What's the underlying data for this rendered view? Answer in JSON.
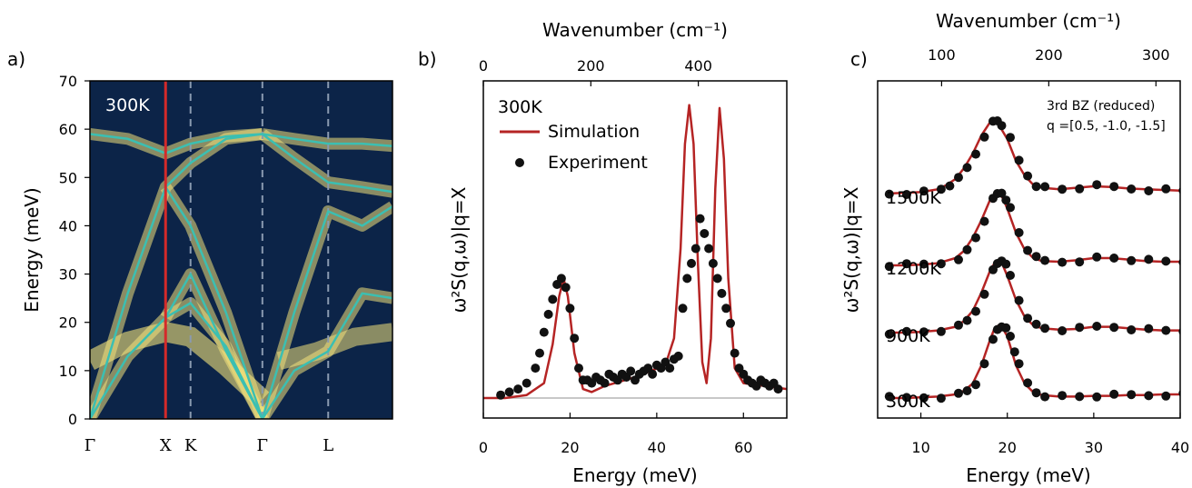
{
  "panel_labels": [
    "a)",
    "b)",
    "c)"
  ],
  "chart_data": [
    {
      "type": "heatmap",
      "panel": "a)",
      "annotation": "300K",
      "ylabel": "Energy (meV)",
      "ylim": [
        0,
        70
      ],
      "yticks": [
        0,
        10,
        20,
        30,
        40,
        50,
        60,
        70
      ],
      "kpath_labels": [
        "Γ",
        "X",
        "K",
        "Γ",
        "L"
      ],
      "kpath_positions": [
        0,
        1,
        1.33,
        2.28,
        3.15
      ],
      "x_range": [
        0,
        4.0
      ],
      "highlighted_point": "X",
      "colors": {
        "background": "#0c2448",
        "intensity": "#f3e27c",
        "dispersion": "#3bbfb2",
        "marker": "#d42a2a",
        "guide": "#8a9ab0"
      },
      "dispersion_branches": [
        {
          "x": [
            0,
            0.5,
            1.0,
            1.33,
            1.8,
            2.28
          ],
          "values": [
            0,
            13,
            21,
            24,
            15,
            0
          ]
        },
        {
          "x": [
            0,
            0.5,
            1.0,
            1.33,
            1.8,
            2.28
          ],
          "values": [
            0,
            26,
            48,
            53,
            58,
            59
          ]
        },
        {
          "x": [
            1.0,
            1.33,
            1.8,
            2.28
          ],
          "values": [
            48,
            40,
            22,
            0
          ]
        },
        {
          "x": [
            1.0,
            1.33,
            1.8,
            2.28
          ],
          "values": [
            21,
            30,
            14,
            0
          ]
        },
        {
          "x": [
            0,
            0.5,
            1.0,
            1.33,
            1.8,
            2.28
          ],
          "values": [
            59,
            58,
            55,
            57,
            58.5,
            59
          ]
        },
        {
          "x": [
            2.28,
            2.7,
            3.15,
            3.6,
            4.0
          ],
          "values": [
            0,
            10,
            14,
            26,
            25
          ]
        },
        {
          "x": [
            2.28,
            2.7,
            3.15,
            3.6,
            4.0
          ],
          "values": [
            0,
            22,
            43,
            40,
            44
          ]
        },
        {
          "x": [
            2.28,
            2.7,
            3.15,
            3.6,
            4.0
          ],
          "values": [
            59,
            58,
            57,
            57,
            56.5
          ]
        },
        {
          "x": [
            2.28,
            2.7,
            3.15,
            3.6,
            4.0
          ],
          "values": [
            59,
            54,
            49,
            48,
            47
          ]
        }
      ]
    },
    {
      "type": "scatter",
      "panel": "b)",
      "annotation": "300K",
      "xlabel": "Energy (meV)",
      "top_xlabel": "Wavenumber (cm⁻¹)",
      "ylabel": "ω²S(q,ω)|q=X",
      "xlim": [
        0,
        70
      ],
      "xticks": [
        0,
        20,
        40,
        60
      ],
      "top_xticks": [
        0,
        200,
        400
      ],
      "legend": {
        "position": "top-left",
        "entries": [
          "Simulation",
          "Experiment"
        ]
      },
      "series": [
        {
          "name": "Simulation",
          "kind": "line",
          "color": "#b52424",
          "x": [
            0,
            5,
            10,
            14,
            16,
            17.5,
            18.5,
            19.5,
            21,
            23,
            25,
            28,
            35,
            42,
            44,
            45.5,
            46.5,
            47.5,
            48.5,
            49.5,
            50.5,
            51.5,
            52.5,
            53.5,
            54.5,
            55.5,
            56.5,
            58,
            60,
            65,
            70
          ],
          "values": [
            0,
            0,
            0.01,
            0.05,
            0.18,
            0.34,
            0.4,
            0.34,
            0.15,
            0.03,
            0.02,
            0.04,
            0.07,
            0.11,
            0.2,
            0.5,
            0.85,
            0.98,
            0.85,
            0.45,
            0.12,
            0.05,
            0.2,
            0.7,
            0.97,
            0.8,
            0.4,
            0.1,
            0.05,
            0.04,
            0.03
          ]
        },
        {
          "name": "Experiment",
          "kind": "scatter",
          "color": "#111111",
          "x": [
            4,
            6,
            8,
            10,
            12,
            13,
            14,
            15,
            16,
            17,
            18,
            19,
            20,
            21,
            22,
            23,
            24,
            25,
            26,
            27,
            28,
            29,
            30,
            31,
            32,
            33,
            34,
            35,
            36,
            37,
            38,
            39,
            40,
            41,
            42,
            43,
            44,
            45,
            46,
            47,
            48,
            49,
            50,
            51,
            52,
            53,
            54,
            55,
            56,
            57,
            58,
            59,
            60,
            61,
            62,
            63,
            64,
            65,
            66,
            67,
            68
          ],
          "values": [
            0.01,
            0.02,
            0.03,
            0.05,
            0.1,
            0.15,
            0.22,
            0.28,
            0.33,
            0.38,
            0.4,
            0.37,
            0.3,
            0.2,
            0.1,
            0.06,
            0.06,
            0.05,
            0.07,
            0.06,
            0.05,
            0.08,
            0.07,
            0.06,
            0.08,
            0.07,
            0.09,
            0.06,
            0.08,
            0.09,
            0.1,
            0.08,
            0.11,
            0.1,
            0.12,
            0.1,
            0.13,
            0.14,
            0.3,
            0.4,
            0.45,
            0.5,
            0.6,
            0.55,
            0.5,
            0.45,
            0.4,
            0.35,
            0.3,
            0.25,
            0.15,
            0.1,
            0.08,
            0.06,
            0.05,
            0.04,
            0.06,
            0.05,
            0.04,
            0.05,
            0.03
          ]
        }
      ]
    },
    {
      "type": "scatter",
      "panel": "c)",
      "xlabel": "Energy (meV)",
      "top_xlabel": "Wavenumber (cm⁻¹)",
      "ylabel": "ω²S(q,ω)|q=X",
      "xlim": [
        5,
        40
      ],
      "xticks": [
        10,
        20,
        30,
        40
      ],
      "top_xticks": [
        100,
        200,
        300
      ],
      "annotation": [
        "3rd BZ (reduced)",
        "q =[0.5, -1.0, -1.5]"
      ],
      "curves": [
        {
          "label": "300K",
          "x_peak": 19.3,
          "x": [
            6,
            8,
            10,
            12,
            14,
            15,
            16,
            17,
            18,
            18.5,
            19,
            19.5,
            20,
            20.5,
            21,
            22,
            23,
            24,
            26,
            28,
            30,
            32,
            34,
            36,
            38,
            40
          ],
          "values": [
            0,
            0,
            0.01,
            0.02,
            0.05,
            0.1,
            0.2,
            0.45,
            0.8,
            0.95,
            1.0,
            0.95,
            0.85,
            0.65,
            0.45,
            0.2,
            0.08,
            0.04,
            0.02,
            0.02,
            0.03,
            0.03,
            0.04,
            0.04,
            0.05,
            0.05
          ]
        },
        {
          "label": "900K",
          "x_peak": 18.5,
          "x": [
            6,
            8,
            10,
            12,
            14,
            15,
            16,
            17,
            18,
            18.5,
            19,
            19.5,
            20,
            21,
            22,
            23,
            24,
            26,
            28,
            30,
            32,
            34,
            36,
            38,
            40
          ],
          "values": [
            0,
            0,
            0.01,
            0.03,
            0.08,
            0.16,
            0.3,
            0.55,
            0.85,
            0.95,
            1.0,
            0.92,
            0.78,
            0.45,
            0.22,
            0.1,
            0.06,
            0.04,
            0.05,
            0.08,
            0.08,
            0.06,
            0.04,
            0.03,
            0.03
          ]
        },
        {
          "label": "1200K",
          "x_peak": 18.3,
          "x": [
            6,
            8,
            10,
            12,
            14,
            15,
            16,
            17,
            18,
            18.5,
            19,
            19.5,
            20,
            21,
            22,
            23,
            24,
            26,
            28,
            30,
            32,
            34,
            36,
            38,
            40
          ],
          "values": [
            0,
            0,
            0.01,
            0.03,
            0.1,
            0.2,
            0.38,
            0.62,
            0.9,
            0.98,
            1.0,
            0.92,
            0.78,
            0.45,
            0.22,
            0.1,
            0.06,
            0.05,
            0.07,
            0.1,
            0.1,
            0.08,
            0.06,
            0.05,
            0.05
          ]
        },
        {
          "label": "1500K",
          "x_peak": 18.0,
          "x": [
            6,
            8,
            10,
            12,
            13,
            14,
            15,
            16,
            17,
            18,
            18.5,
            19,
            20,
            21,
            22,
            23,
            24,
            26,
            28,
            30,
            32,
            34,
            36,
            38,
            40
          ],
          "values": [
            0,
            0.01,
            0.02,
            0.06,
            0.12,
            0.2,
            0.35,
            0.55,
            0.8,
            0.98,
            1.0,
            0.95,
            0.75,
            0.45,
            0.25,
            0.12,
            0.08,
            0.06,
            0.08,
            0.1,
            0.09,
            0.07,
            0.06,
            0.05,
            0.04
          ]
        }
      ]
    }
  ]
}
